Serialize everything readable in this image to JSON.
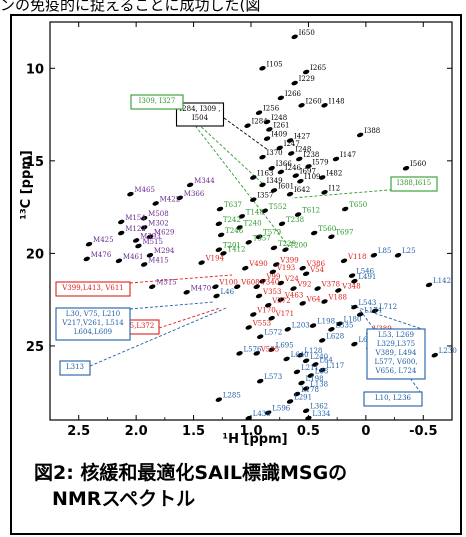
{
  "top_strip_text": "ンの免疫的に捉えることに成功した(図",
  "caption": {
    "line1": "図2: 核緩和最適化SAIL標識MSGの",
    "line2": "NMRスペクトル"
  },
  "chart_data": {
    "type": "scatter",
    "title": "",
    "xlabel": "¹H [ppm]",
    "ylabel": "¹³C [ppm]",
    "xlim": [
      2.75,
      -0.75
    ],
    "ylim": [
      7.5,
      29.0
    ],
    "x_ticks": [
      2.5,
      2.0,
      1.5,
      1.0,
      0.5,
      0.0,
      -0.5
    ],
    "x_tick_labels": [
      "2.5",
      "2.0",
      "1.5",
      "1.0",
      "0.5",
      "0",
      "-0.5"
    ],
    "y_ticks": [
      10,
      15,
      20,
      25
    ],
    "y_tick_labels": [
      "10",
      "15",
      "20",
      "25"
    ],
    "colors": {
      "isoleucine": "#000000",
      "methionine": "#6a2c91",
      "threonine": "#2e9a2e",
      "valine": "#e0201b",
      "leucine": "#1f5fa8"
    },
    "series": [
      {
        "color": "isoleucine",
        "points": [
          {
            "x": 0.62,
            "y": 8.3,
            "label": "I650"
          },
          {
            "x": 0.9,
            "y": 10.0,
            "label": "I105"
          },
          {
            "x": 0.52,
            "y": 10.2,
            "label": "I265"
          },
          {
            "x": 0.62,
            "y": 10.8,
            "label": "I229"
          },
          {
            "x": 0.74,
            "y": 11.6,
            "label": "I266"
          },
          {
            "x": 0.56,
            "y": 12.0,
            "label": "I260"
          },
          {
            "x": 0.36,
            "y": 12.0,
            "label": "I148"
          },
          {
            "x": 0.93,
            "y": 12.4,
            "label": "I256"
          },
          {
            "x": 0.86,
            "y": 12.9,
            "label": "I248"
          },
          {
            "x": 0.84,
            "y": 13.3,
            "label": "I261"
          },
          {
            "x": 0.86,
            "y": 13.8,
            "label": "I409"
          },
          {
            "x": 0.66,
            "y": 13.9,
            "label": "I427"
          },
          {
            "x": 0.05,
            "y": 13.6,
            "label": "I388"
          },
          {
            "x": 0.75,
            "y": 14.3,
            "label": "I247"
          },
          {
            "x": 0.65,
            "y": 14.6,
            "label": "I248"
          },
          {
            "x": 0.58,
            "y": 14.9,
            "label": "I238"
          },
          {
            "x": 0.9,
            "y": 14.8,
            "label": "I370"
          },
          {
            "x": 0.26,
            "y": 14.9,
            "label": "I147"
          },
          {
            "x": 0.82,
            "y": 15.4,
            "label": "I366"
          },
          {
            "x": 0.74,
            "y": 15.6,
            "label": "I246"
          },
          {
            "x": 0.61,
            "y": 15.8,
            "label": "I697"
          },
          {
            "x": 0.98,
            "y": 15.9,
            "label": "I163"
          },
          {
            "x": 0.9,
            "y": 16.3,
            "label": "I349"
          },
          {
            "x": 0.8,
            "y": 16.6,
            "label": "I601"
          },
          {
            "x": 0.66,
            "y": 16.8,
            "label": "I642"
          },
          {
            "x": 0.98,
            "y": 17.1,
            "label": "I357"
          },
          {
            "x": 0.36,
            "y": 16.7,
            "label": "I12"
          },
          {
            "x": 0.57,
            "y": 16.1,
            "label": "I109"
          },
          {
            "x": 1.03,
            "y": 13.1,
            "label": "I284"
          },
          {
            "x": -0.35,
            "y": 15.4,
            "label": "I560"
          },
          {
            "x": 0.38,
            "y": 15.9,
            "label": "I482"
          },
          {
            "x": 0.5,
            "y": 15.3,
            "label": "I579"
          }
        ]
      },
      {
        "color": "methionine",
        "points": [
          {
            "x": 1.53,
            "y": 16.3,
            "label": "M344"
          },
          {
            "x": 2.05,
            "y": 16.8,
            "label": "M465"
          },
          {
            "x": 1.62,
            "y": 17.0,
            "label": "M366"
          },
          {
            "x": 1.83,
            "y": 17.3,
            "label": "M422"
          },
          {
            "x": 1.93,
            "y": 18.1,
            "label": "M508"
          },
          {
            "x": 2.13,
            "y": 18.3,
            "label": "M154"
          },
          {
            "x": 1.93,
            "y": 18.6,
            "label": "M302"
          },
          {
            "x": 2.13,
            "y": 18.9,
            "label": "M122"
          },
          {
            "x": 1.88,
            "y": 19.1,
            "label": "M629"
          },
          {
            "x": 2.0,
            "y": 19.3,
            "label": "M393"
          },
          {
            "x": 2.41,
            "y": 19.5,
            "label": "M425"
          },
          {
            "x": 1.98,
            "y": 19.6,
            "label": "M515"
          },
          {
            "x": 1.88,
            "y": 20.1,
            "label": "M294"
          },
          {
            "x": 2.43,
            "y": 20.3,
            "label": "M476"
          },
          {
            "x": 2.15,
            "y": 20.4,
            "label": "M461"
          },
          {
            "x": 1.93,
            "y": 20.6,
            "label": "M415"
          },
          {
            "x": 1.56,
            "y": 22.1,
            "label": "M470"
          },
          {
            "x": 1.86,
            "y": 21.8,
            "label": "M515"
          }
        ]
      },
      {
        "color": "threonine",
        "points": [
          {
            "x": 1.27,
            "y": 17.6,
            "label": "T637"
          },
          {
            "x": 0.88,
            "y": 17.7,
            "label": "T552"
          },
          {
            "x": 1.08,
            "y": 18.0,
            "label": "T148"
          },
          {
            "x": 0.59,
            "y": 17.9,
            "label": "T612"
          },
          {
            "x": 0.18,
            "y": 17.6,
            "label": "T650"
          },
          {
            "x": 1.28,
            "y": 18.4,
            "label": "T242"
          },
          {
            "x": 1.1,
            "y": 18.6,
            "label": "T240"
          },
          {
            "x": 0.73,
            "y": 18.4,
            "label": "T238"
          },
          {
            "x": 0.45,
            "y": 18.9,
            "label": "T560"
          },
          {
            "x": 1.26,
            "y": 19.0,
            "label": "T246"
          },
          {
            "x": 0.93,
            "y": 19.1,
            "label": "T579"
          },
          {
            "x": 1.02,
            "y": 19.4,
            "label": "T357"
          },
          {
            "x": 0.3,
            "y": 19.1,
            "label": "T697"
          },
          {
            "x": 1.28,
            "y": 19.8,
            "label": "T201"
          },
          {
            "x": 0.8,
            "y": 19.7,
            "label": "T229"
          },
          {
            "x": 1.24,
            "y": 20.0,
            "label": "T412"
          },
          {
            "x": 0.7,
            "y": 19.8,
            "label": "T200"
          }
        ]
      },
      {
        "color": "valine",
        "points": [
          {
            "x": 1.43,
            "y": 20.5,
            "label": "V194"
          },
          {
            "x": 1.05,
            "y": 20.8,
            "label": "V490"
          },
          {
            "x": 0.78,
            "y": 20.6,
            "label": "V399"
          },
          {
            "x": 0.55,
            "y": 20.8,
            "label": "V386"
          },
          {
            "x": 0.19,
            "y": 20.4,
            "label": "V118"
          },
          {
            "x": 0.81,
            "y": 21.0,
            "label": "V193"
          },
          {
            "x": 0.52,
            "y": 21.1,
            "label": "V54"
          },
          {
            "x": 0.9,
            "y": 21.5,
            "label": "V99"
          },
          {
            "x": 0.74,
            "y": 21.6,
            "label": "V24"
          },
          {
            "x": 1.31,
            "y": 21.8,
            "label": "V100"
          },
          {
            "x": 1.12,
            "y": 21.8,
            "label": "V608"
          },
          {
            "x": 0.95,
            "y": 21.8,
            "label": "V340"
          },
          {
            "x": 0.63,
            "y": 21.9,
            "label": "V92"
          },
          {
            "x": 0.42,
            "y": 21.9,
            "label": "V378"
          },
          {
            "x": 0.24,
            "y": 22.0,
            "label": "V348"
          },
          {
            "x": 0.93,
            "y": 22.3,
            "label": "V353"
          },
          {
            "x": 0.74,
            "y": 22.5,
            "label": "V463"
          },
          {
            "x": 0.85,
            "y": 22.8,
            "label": "V372"
          },
          {
            "x": 0.55,
            "y": 22.7,
            "label": "V64"
          },
          {
            "x": 0.36,
            "y": 22.6,
            "label": "V188"
          },
          {
            "x": 0.98,
            "y": 23.3,
            "label": "V170"
          },
          {
            "x": 0.82,
            "y": 23.5,
            "label": "V171"
          },
          {
            "x": 1.02,
            "y": 24.0,
            "label": "V553"
          },
          {
            "x": 0.95,
            "y": 25.4,
            "label": "V535"
          },
          {
            "x": -0.03,
            "y": 24.3,
            "label": "V389"
          },
          {
            "x": -0.03,
            "y": 25.1,
            "label": "V656"
          }
        ]
      },
      {
        "color": "leucine",
        "points": [
          {
            "x": -0.07,
            "y": 20.1,
            "label": "L85"
          },
          {
            "x": -0.28,
            "y": 20.1,
            "label": "L25"
          },
          {
            "x": -0.55,
            "y": 21.7,
            "label": "L142"
          },
          {
            "x": 0.12,
            "y": 21.2,
            "label": "L546"
          },
          {
            "x": 0.1,
            "y": 21.5,
            "label": "L491"
          },
          {
            "x": 1.3,
            "y": 22.3,
            "label": "L46"
          },
          {
            "x": 0.1,
            "y": 22.9,
            "label": "L543"
          },
          {
            "x": 0.05,
            "y": 23.3,
            "label": "L174"
          },
          {
            "x": 0.23,
            "y": 23.8,
            "label": "L180"
          },
          {
            "x": 0.46,
            "y": 23.9,
            "label": "L198"
          },
          {
            "x": 0.68,
            "y": 24.1,
            "label": "L203"
          },
          {
            "x": 0.92,
            "y": 24.5,
            "label": "L572"
          },
          {
            "x": 0.38,
            "y": 24.7,
            "label": "L628"
          },
          {
            "x": 0.1,
            "y": 24.9,
            "label": "L660"
          },
          {
            "x": 0.82,
            "y": 25.2,
            "label": "L695"
          },
          {
            "x": 0.57,
            "y": 25.5,
            "label": "L128"
          },
          {
            "x": 0.52,
            "y": 25.8,
            "label": "L240"
          },
          {
            "x": 1.1,
            "y": 25.4,
            "label": "L576"
          },
          {
            "x": 0.69,
            "y": 25.7,
            "label": "L640"
          },
          {
            "x": 0.44,
            "y": 26.0,
            "label": "L64"
          },
          {
            "x": 0.38,
            "y": 26.3,
            "label": "L117"
          },
          {
            "x": 0.6,
            "y": 26.4,
            "label": "L211"
          },
          {
            "x": 0.48,
            "y": 26.6,
            "label": "L88"
          },
          {
            "x": 0.92,
            "y": 26.9,
            "label": "L573"
          },
          {
            "x": 0.56,
            "y": 27.0,
            "label": "L198"
          },
          {
            "x": 0.52,
            "y": 27.3,
            "label": "L138"
          },
          {
            "x": 0.6,
            "y": 27.6,
            "label": "L178"
          },
          {
            "x": 0.66,
            "y": 28.0,
            "label": "L291"
          },
          {
            "x": 1.28,
            "y": 27.9,
            "label": "L285"
          },
          {
            "x": 0.52,
            "y": 28.5,
            "label": "L362"
          },
          {
            "x": 0.85,
            "y": 28.6,
            "label": "L596"
          },
          {
            "x": 1.02,
            "y": 28.9,
            "label": "L435"
          },
          {
            "x": 0.5,
            "y": 28.9,
            "label": "L334"
          },
          {
            "x": -0.6,
            "y": 25.5,
            "label": "L230"
          },
          {
            "x": -0.08,
            "y": 23.1,
            "label": "L712"
          },
          {
            "x": 0.3,
            "y": 24.1,
            "label": "L335"
          }
        ]
      }
    ],
    "boxed_annotations": [
      {
        "color": "isoleucine",
        "lines": [
          "I284, I309 ,",
          "I504"
        ]
      },
      {
        "color": "threonine",
        "lines": [
          "I309, I327"
        ]
      },
      {
        "color": "threonine",
        "lines": [
          "I388,I615"
        ]
      },
      {
        "color": "valine",
        "lines": [
          "V399,L413, V611"
        ]
      },
      {
        "color": "valine",
        "lines": [
          "V275,L372"
        ]
      },
      {
        "color": "leucine",
        "lines": [
          "L30, V75, L210",
          "V217,V261, L514",
          "L604,L609"
        ]
      },
      {
        "color": "leucine",
        "lines": [
          "L313"
        ]
      },
      {
        "color": "leucine",
        "lines": [
          "L53, L269",
          "L329,L375",
          "V389, L494",
          "L577, V600,",
          "V656, L724"
        ]
      },
      {
        "color": "leucine",
        "lines": [
          "L10, L236"
        ]
      }
    ]
  }
}
